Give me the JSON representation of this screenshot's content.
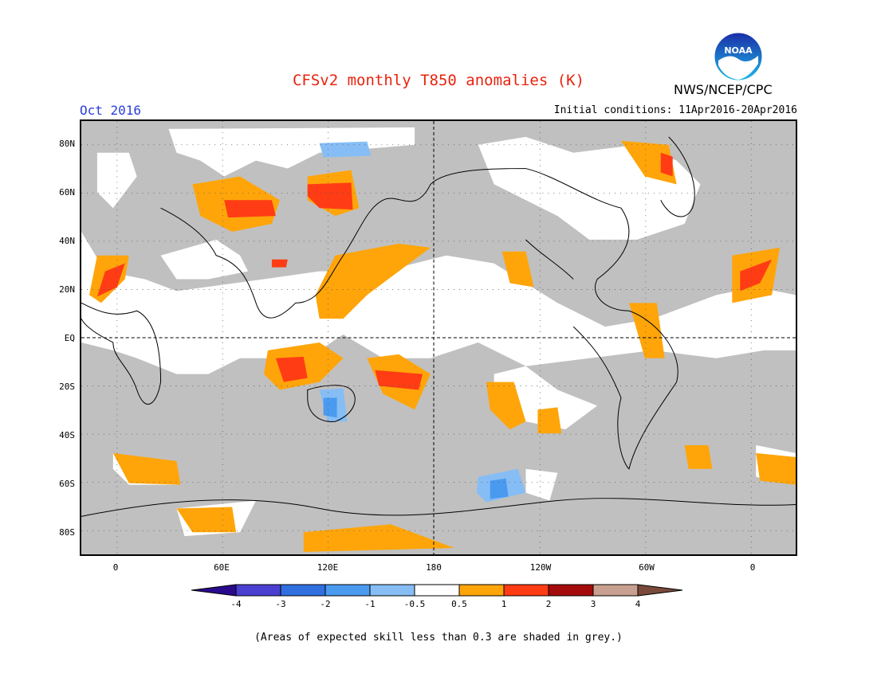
{
  "title": "CFSv2 monthly T850 anomalies (K)",
  "agency": "NWS/NCEP/CPC",
  "logo_text": "NOAA",
  "forecast_month": "Oct 2016",
  "initial_conditions": "Initial conditions: 11Apr2016-20Apr2016",
  "latitude_labels": [
    "80N",
    "60N",
    "40N",
    "20N",
    "EQ",
    "20S",
    "40S",
    "60S",
    "80S"
  ],
  "longitude_labels": [
    "0",
    "60E",
    "120E",
    "180",
    "120W",
    "60W",
    "0"
  ],
  "colorbar": {
    "labels": [
      "-4",
      "-3",
      "-2",
      "-1",
      "-0.5",
      "0.5",
      "1",
      "2",
      "3",
      "4"
    ],
    "colors": [
      "#2a0a8c",
      "#4a3fd0",
      "#2f6fe0",
      "#4a9af0",
      "#86bdf5",
      "#ffffff",
      "#ffa50a",
      "#ff3c14",
      "#a50a0a",
      "#c8a090",
      "#7a4a3a"
    ]
  },
  "colors": {
    "title": "#e8230f",
    "month": "#2b3fd6",
    "skill_grey": "#c0c0c0"
  },
  "note": "(Areas of expected skill less than 0.3 are shaded in grey.)"
}
